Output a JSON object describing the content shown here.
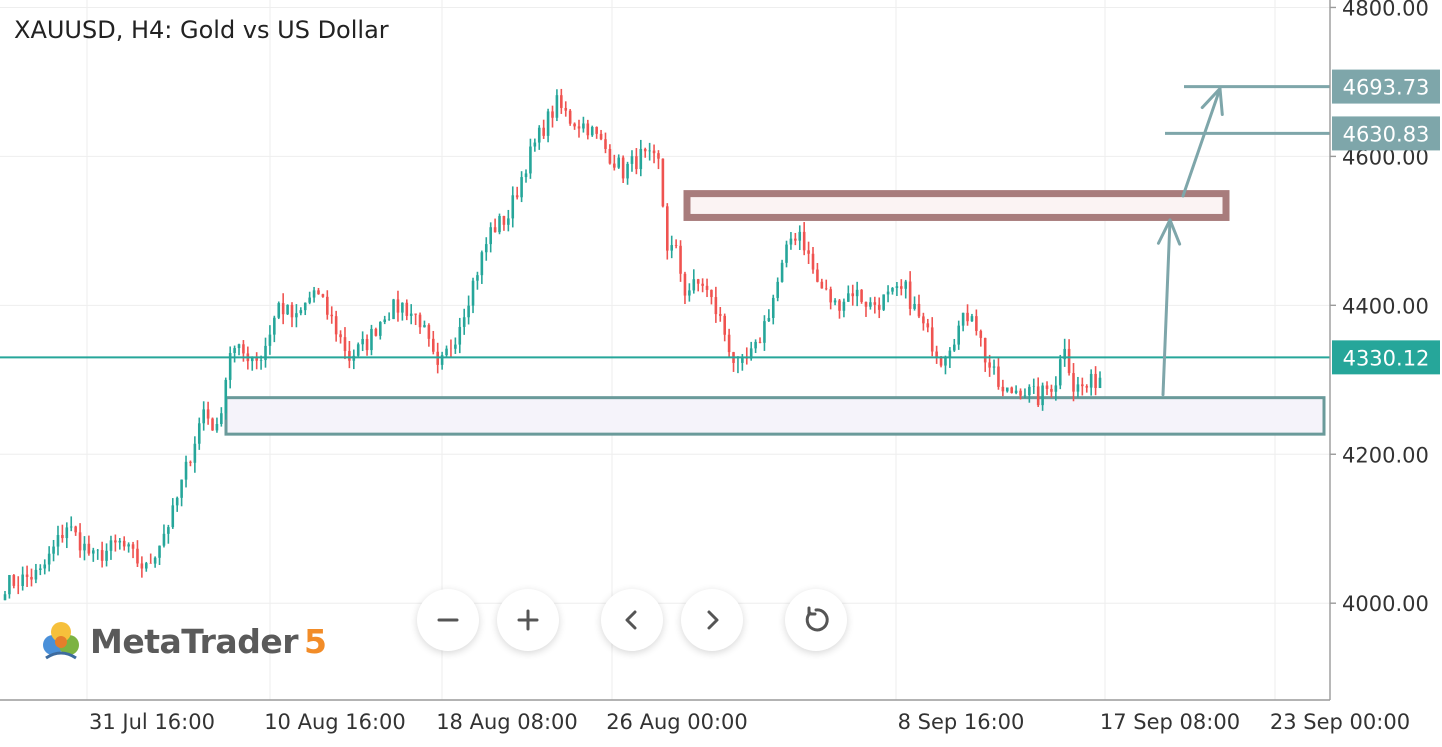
{
  "header": {
    "title": "XAUUSD, H4: Gold vs US Dollar"
  },
  "brand": {
    "name": "MetaTrader",
    "version": "5"
  },
  "colors": {
    "bull": "#26a69a",
    "bear": "#ef5350",
    "current_price_line": "#26a69a",
    "resistance_zone": "#a87c7c",
    "support_zone": "#6a9a9a",
    "target_arrow": "#7ea6aa",
    "label_current_bg": "#26a69a",
    "label_target_bg": "#7ea6aa"
  },
  "controls": [
    {
      "name": "zoom-out-button",
      "icon": "minus-icon"
    },
    {
      "name": "zoom-in-button",
      "icon": "plus-icon"
    },
    {
      "name": "scroll-left-button",
      "icon": "chevron-left-icon"
    },
    {
      "name": "scroll-right-button",
      "icon": "chevron-right-icon"
    },
    {
      "name": "reset-button",
      "icon": "reset-icon"
    }
  ],
  "chart_data": {
    "type": "candlestick",
    "symbol": "XAUUSD",
    "timeframe": "H4",
    "y_range": [
      3870,
      4810
    ],
    "y_ticks": [
      "4800.00",
      "4600.00",
      "4400.00",
      "4200.00",
      "4000.00"
    ],
    "x_ticks": [
      "31 Jul 16:00",
      "10 Aug 16:00",
      "18 Aug 08:00",
      "26 Aug 00:00",
      "8 Sep 16:00",
      "17 Sep 08:00",
      "23 Sep 00:00"
    ],
    "current_price": {
      "value": 4330.12,
      "label": "4330.12"
    },
    "targets": [
      {
        "value": 4693.73,
        "label": "4693.73"
      },
      {
        "value": 4630.83,
        "label": "4630.83"
      }
    ],
    "resistance_zone": {
      "low": 4518,
      "high": 4550
    },
    "support_zone": {
      "low": 4227,
      "high": 4276
    },
    "close_path": [
      [
        0,
        4025
      ],
      [
        8,
        4040
      ],
      [
        14,
        4105
      ],
      [
        20,
        4060
      ],
      [
        26,
        4080
      ],
      [
        32,
        4045
      ],
      [
        38,
        4120
      ],
      [
        42,
        4200
      ],
      [
        45,
        4260
      ],
      [
        48,
        4230
      ],
      [
        51,
        4340
      ],
      [
        54,
        4335
      ],
      [
        58,
        4330
      ],
      [
        62,
        4400
      ],
      [
        66,
        4380
      ],
      [
        70,
        4420
      ],
      [
        74,
        4380
      ],
      [
        78,
        4330
      ],
      [
        82,
        4350
      ],
      [
        86,
        4390
      ],
      [
        90,
        4400
      ],
      [
        94,
        4380
      ],
      [
        98,
        4310
      ],
      [
        102,
        4360
      ],
      [
        106,
        4430
      ],
      [
        110,
        4500
      ],
      [
        114,
        4520
      ],
      [
        118,
        4590
      ],
      [
        122,
        4640
      ],
      [
        125,
        4670
      ],
      [
        128,
        4650
      ],
      [
        132,
        4640
      ],
      [
        136,
        4610
      ],
      [
        140,
        4580
      ],
      [
        144,
        4600
      ],
      [
        148,
        4590
      ],
      [
        150,
        4480
      ],
      [
        152,
        4470
      ],
      [
        154,
        4420
      ],
      [
        158,
        4430
      ],
      [
        162,
        4380
      ],
      [
        166,
        4310
      ],
      [
        170,
        4340
      ],
      [
        174,
        4410
      ],
      [
        178,
        4490
      ],
      [
        180,
        4500
      ],
      [
        184,
        4430
      ],
      [
        188,
        4400
      ],
      [
        192,
        4420
      ],
      [
        196,
        4400
      ],
      [
        200,
        4410
      ],
      [
        204,
        4420
      ],
      [
        208,
        4370
      ],
      [
        212,
        4330
      ],
      [
        216,
        4370
      ],
      [
        219,
        4395
      ],
      [
        222,
        4330
      ],
      [
        226,
        4280
      ],
      [
        230,
        4290
      ],
      [
        234,
        4275
      ],
      [
        238,
        4300
      ],
      [
        240,
        4350
      ],
      [
        242,
        4290
      ],
      [
        245,
        4290
      ],
      [
        248,
        4305
      ]
    ],
    "annotations": {
      "entry_arrow": {
        "from": 4280,
        "to": 4520
      },
      "target_arrow": {
        "from": 4520,
        "to": 4693.73
      }
    }
  }
}
